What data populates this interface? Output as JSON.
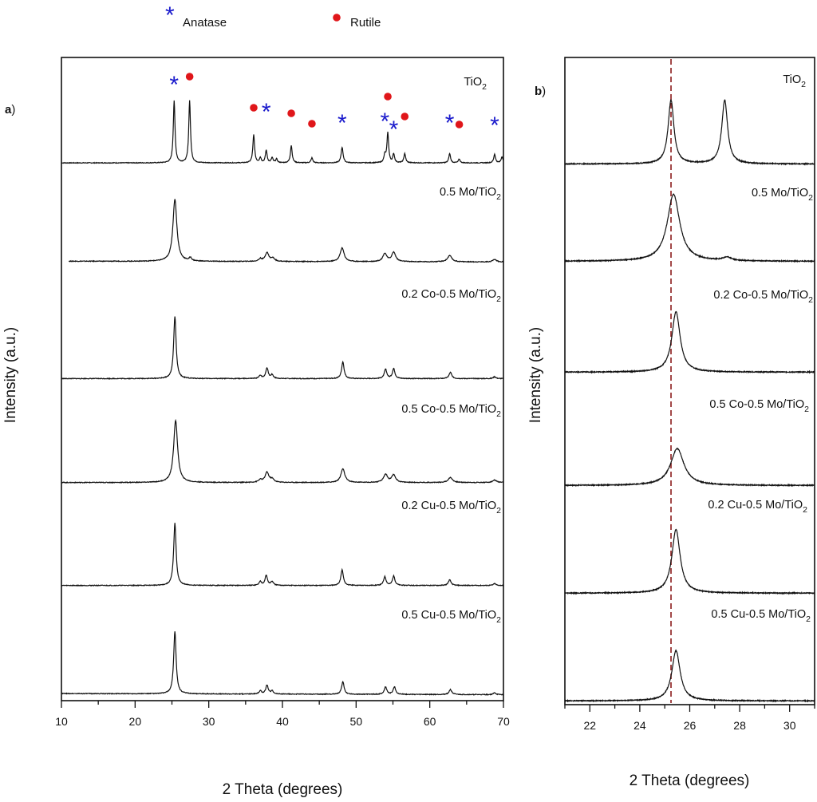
{
  "legend": {
    "anatase": {
      "label": "Anatase",
      "symbol": "*",
      "color": "#1a1acc"
    },
    "rutile": {
      "label": "Rutile",
      "symbol": "●",
      "color": "#e0161a"
    }
  },
  "chart_data": [
    {
      "id": "a",
      "panel_label": "a",
      "type": "line",
      "xlabel": "2 Theta (degrees)",
      "ylabel": "Intensity (a.u.)",
      "xlim": [
        10,
        70
      ],
      "xticks": [
        10,
        20,
        30,
        40,
        50,
        60,
        70
      ],
      "grid": false,
      "phase_markers": [
        {
          "phase": "anatase",
          "x": 25.3
        },
        {
          "phase": "rutile",
          "x": 27.4
        },
        {
          "phase": "rutile",
          "x": 36.1
        },
        {
          "phase": "anatase",
          "x": 37.8
        },
        {
          "phase": "rutile",
          "x": 41.2
        },
        {
          "phase": "rutile",
          "x": 44.0
        },
        {
          "phase": "anatase",
          "x": 48.1
        },
        {
          "phase": "anatase",
          "x": 53.9
        },
        {
          "phase": "rutile",
          "x": 54.3
        },
        {
          "phase": "anatase",
          "x": 55.1
        },
        {
          "phase": "rutile",
          "x": 56.6
        },
        {
          "phase": "anatase",
          "x": 62.7
        },
        {
          "phase": "rutile",
          "x": 64.0
        },
        {
          "phase": "anatase",
          "x": 68.8
        }
      ],
      "series": [
        {
          "name": "TiO2",
          "label_main": "TiO",
          "label_sub": "2",
          "label_pre": "",
          "x_start": 10,
          "baseline": 0.05,
          "slope": 0.0,
          "peaks": [
            [
              25.3,
              1.0,
              0.14
            ],
            [
              27.4,
              1.0,
              0.14
            ],
            [
              36.1,
              0.45,
              0.14
            ],
            [
              37.0,
              0.08,
              0.14
            ],
            [
              37.8,
              0.2,
              0.14
            ],
            [
              38.6,
              0.08,
              0.14
            ],
            [
              39.2,
              0.06,
              0.14
            ],
            [
              41.2,
              0.28,
              0.14
            ],
            [
              44.0,
              0.08,
              0.14
            ],
            [
              48.1,
              0.25,
              0.16
            ],
            [
              53.9,
              0.12,
              0.14
            ],
            [
              54.3,
              0.48,
              0.14
            ],
            [
              55.1,
              0.14,
              0.14
            ],
            [
              56.6,
              0.15,
              0.14
            ],
            [
              62.7,
              0.15,
              0.14
            ],
            [
              64.0,
              0.06,
              0.14
            ],
            [
              68.8,
              0.14,
              0.14
            ],
            [
              69.8,
              0.1,
              0.14
            ]
          ]
        },
        {
          "name": "0.5 Mo/TiO2",
          "label_main": "0.5 Mo/TiO",
          "label_sub": "2",
          "label_pre": "",
          "x_start": 11,
          "baseline": 0.06,
          "slope": -0.0002,
          "peaks": [
            [
              25.4,
              1.0,
              0.32
            ],
            [
              27.5,
              0.05,
              0.2
            ],
            [
              37.0,
              0.04,
              0.25
            ],
            [
              37.9,
              0.14,
              0.3
            ],
            [
              38.7,
              0.05,
              0.3
            ],
            [
              48.1,
              0.22,
              0.32
            ],
            [
              53.9,
              0.13,
              0.32
            ],
            [
              55.1,
              0.15,
              0.32
            ],
            [
              62.7,
              0.1,
              0.35
            ],
            [
              68.8,
              0.04,
              0.3
            ]
          ]
        },
        {
          "name": "0.2 Co-0.5 Mo/TiO2",
          "label_main": "0.2 Co-0.5 Mo/TiO",
          "label_sub": "2",
          "label_pre": "",
          "x_start": 10,
          "baseline": 0.02,
          "slope": 0.0,
          "peaks": [
            [
              25.4,
              1.0,
              0.2
            ],
            [
              37.0,
              0.05,
              0.2
            ],
            [
              37.9,
              0.17,
              0.2
            ],
            [
              38.6,
              0.06,
              0.2
            ],
            [
              48.2,
              0.27,
              0.2
            ],
            [
              54.0,
              0.15,
              0.2
            ],
            [
              55.1,
              0.16,
              0.2
            ],
            [
              62.8,
              0.1,
              0.22
            ],
            [
              68.8,
              0.03,
              0.2
            ]
          ]
        },
        {
          "name": "0.5 Co-0.5 Mo/TiO2",
          "label_main": "0.5 Co-0.5 Mo/TiO",
          "label_sub": "2",
          "label_pre": "",
          "x_start": 10,
          "baseline": 0.03,
          "slope": 0.0,
          "peaks": [
            [
              25.5,
              1.0,
              0.32
            ],
            [
              37.0,
              0.04,
              0.3
            ],
            [
              37.9,
              0.16,
              0.3
            ],
            [
              38.6,
              0.05,
              0.3
            ],
            [
              48.2,
              0.22,
              0.32
            ],
            [
              54.0,
              0.13,
              0.32
            ],
            [
              55.1,
              0.12,
              0.32
            ],
            [
              62.8,
              0.08,
              0.35
            ],
            [
              68.8,
              0.04,
              0.3
            ]
          ]
        },
        {
          "name": "0.2 Cu-0.5 Mo/TiO2",
          "label_main": "0.2 Cu-0.5 Mo/TiO",
          "label_sub": "2",
          "label_pre": "",
          "x_start": 10,
          "baseline": 0.03,
          "slope": 0.0,
          "peaks": [
            [
              25.4,
              1.0,
              0.2
            ],
            [
              37.0,
              0.06,
              0.2
            ],
            [
              37.8,
              0.16,
              0.2
            ],
            [
              38.6,
              0.06,
              0.2
            ],
            [
              48.1,
              0.25,
              0.2
            ],
            [
              53.9,
              0.14,
              0.2
            ],
            [
              55.1,
              0.15,
              0.2
            ],
            [
              62.7,
              0.09,
              0.22
            ],
            [
              68.8,
              0.03,
              0.2
            ]
          ]
        },
        {
          "name": "0.5 Cu-0.5 Mo/TiO2",
          "label_main": "0.5 Cu-0.5 Mo/TiO",
          "label_sub": "2",
          "label_pre": "",
          "x_start": 10,
          "baseline": 0.05,
          "slope": -0.0003,
          "peaks": [
            [
              25.4,
              1.0,
              0.2
            ],
            [
              37.0,
              0.05,
              0.2
            ],
            [
              37.9,
              0.14,
              0.2
            ],
            [
              38.6,
              0.05,
              0.2
            ],
            [
              48.2,
              0.2,
              0.2
            ],
            [
              54.0,
              0.12,
              0.2
            ],
            [
              55.2,
              0.12,
              0.2
            ],
            [
              62.8,
              0.08,
              0.22
            ],
            [
              68.8,
              0.03,
              0.2
            ]
          ]
        }
      ]
    },
    {
      "id": "b",
      "panel_label": "b",
      "type": "line",
      "xlabel": "2 Theta (degrees)",
      "ylabel": "Intensity (a.u.)",
      "xlim": [
        21,
        31
      ],
      "xticks": [
        22,
        24,
        26,
        28,
        30
      ],
      "grid": false,
      "reference_line": {
        "x": 25.25,
        "style": "dashed",
        "color": "#8b1a1a"
      },
      "series": [
        {
          "name": "TiO2",
          "label_main": "TiO",
          "label_sub": "2",
          "label_pre": "",
          "x_start": 21,
          "baseline": 0.03,
          "slope": 0.0,
          "peaks": [
            [
              25.25,
              0.95,
              0.14
            ],
            [
              27.4,
              0.95,
              0.14
            ]
          ]
        },
        {
          "name": "0.5 Mo/TiO2",
          "label_main": "0.5 Mo/TiO",
          "label_sub": "2",
          "label_pre": "",
          "x_start": 21,
          "baseline": 0.03,
          "slope": 0.0,
          "peaks": [
            [
              25.35,
              1.0,
              0.3
            ],
            [
              27.5,
              0.05,
              0.2
            ]
          ]
        },
        {
          "name": "0.2 Co-0.5 Mo/TiO2",
          "label_main": "0.2 Co-0.5 Mo/TiO",
          "label_sub": "2",
          "label_pre": "",
          "x_start": 21,
          "baseline": 0.02,
          "slope": 0.0,
          "peaks": [
            [
              25.45,
              0.9,
              0.2
            ]
          ]
        },
        {
          "name": "0.5 Co-0.5 Mo/TiO2",
          "label_main": "0.5 Co-0.5 Mo/TiO",
          "label_sub": "2",
          "label_pre": "",
          "x_start": 21,
          "baseline": 0.02,
          "slope": 0.0,
          "peaks": [
            [
              25.5,
              0.55,
              0.32
            ]
          ]
        },
        {
          "name": "0.2 Cu-0.5 Mo/TiO2",
          "label_main": "0.2 Cu-0.5 Mo/TiO",
          "label_sub": "2",
          "label_pre": "",
          "x_start": 21,
          "baseline": 0.02,
          "slope": 0.0,
          "peaks": [
            [
              25.45,
              0.95,
              0.2
            ]
          ]
        },
        {
          "name": "0.5 Cu-0.5 Mo/TiO2",
          "label_main": "0.5 Cu-0.5 Mo/TiO",
          "label_sub": "2",
          "label_pre": "",
          "x_start": 21,
          "baseline": 0.02,
          "slope": 0.0,
          "peaks": [
            [
              25.45,
              0.75,
              0.2
            ]
          ]
        }
      ]
    }
  ]
}
